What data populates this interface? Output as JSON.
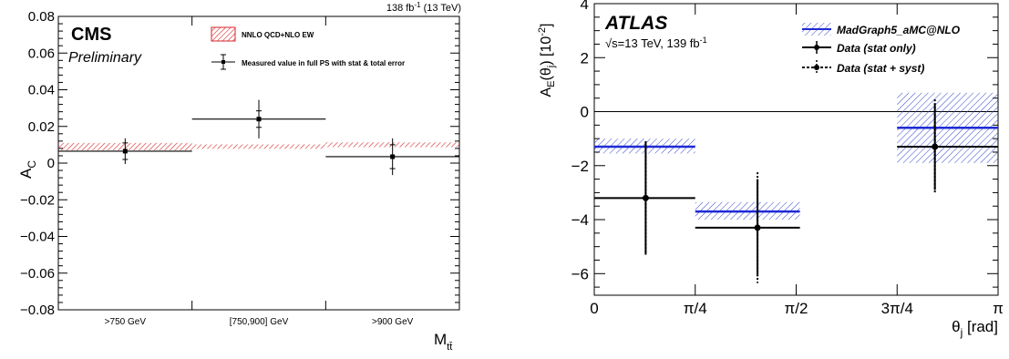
{
  "chart_data": [
    {
      "type": "scatter",
      "experiment_label": "CMS",
      "status_label": "Preliminary",
      "lumi_label": "138 fb",
      "lumi_exp": "-1",
      "lumi_energy": " (13 TeV)",
      "ylabel": "A",
      "ylabel_sub": "C",
      "xlabel": "M",
      "xlabel_sub": "tt̄",
      "ylim": [
        -0.08,
        0.08
      ],
      "yticks": [
        "0.08",
        "0.06",
        "0.04",
        "0.02",
        "0",
        "−0.02",
        "−0.04",
        "−0.06",
        "−0.08"
      ],
      "yticks_values": [
        0.08,
        0.06,
        0.04,
        0.02,
        0,
        -0.02,
        -0.04,
        -0.06,
        -0.08
      ],
      "categories": [
        ">750 GeV",
        "[750,900] GeV",
        ">900 GeV"
      ],
      "legend": {
        "prediction": "NNLO QCD+NLO EW",
        "measurement": "Measured value in full PS with stat & total error"
      },
      "series": [
        {
          "name": "NNLO QCD+NLO EW",
          "values": [
            0.009,
            0.009,
            0.01
          ],
          "band_low": [
            0.007,
            0.0078,
            0.0087
          ],
          "band_high": [
            0.011,
            0.0102,
            0.0113
          ]
        },
        {
          "name": "Measured value in full PS with stat & total error",
          "values": [
            0.0065,
            0.024,
            0.0035
          ],
          "stat_err": [
            0.0045,
            0.0045,
            0.0065
          ],
          "total_err": [
            0.007,
            0.0105,
            0.01
          ]
        }
      ],
      "colors": {
        "band": "#d6262b",
        "data": "#000000"
      }
    },
    {
      "type": "scatter",
      "experiment_label": "ATLAS",
      "energy_label": "√s=13 TeV, 139 fb",
      "energy_exp": "-1",
      "ylabel": "A",
      "ylabel_sub": "E",
      "ylabel_arg": "(θ",
      "ylabel_arg_sub": "j",
      "ylabel_tail": ") [10",
      "ylabel_tail_exp": "-2",
      "ylabel_close": "]",
      "xlabel": "θ",
      "xlabel_sub": "j",
      "xlabel_unit": " [rad]",
      "ylim": [
        -6.8,
        4
      ],
      "yticks": [
        "4",
        "2",
        "0",
        "−2",
        "−4",
        "−6"
      ],
      "yticks_values": [
        4,
        2,
        0,
        -2,
        -4,
        -6
      ],
      "xlim": [
        0,
        3.1416
      ],
      "xticks": [
        "0",
        "π/4",
        "π/2",
        "3π/4",
        "π"
      ],
      "xticks_values": [
        0,
        0.7854,
        1.5708,
        2.3562,
        3.1416
      ],
      "bins": [
        [
          0,
          0.7854
        ],
        [
          0.7854,
          1.6
        ],
        [
          1.6,
          2.3562
        ],
        [
          2.3562,
          3.1416
        ]
      ],
      "legend": {
        "mc": "MadGraph5_aMC@NLO",
        "data_stat": "Data (stat only)",
        "data_syst": "Data (stat + syst)"
      },
      "series": [
        {
          "name": "MadGraph5_aMC@NLO",
          "values": [
            -1.3,
            -3.7,
            null,
            -0.6
          ],
          "band_low": [
            -1.55,
            -4.0,
            null,
            -1.9
          ],
          "band_high": [
            -1.0,
            -3.35,
            null,
            0.7
          ]
        },
        {
          "name": "Data (stat only)",
          "bin_x": [
            0.4,
            1.27,
            null,
            2.65
          ],
          "values": [
            -3.2,
            -4.3,
            null,
            -1.3
          ],
          "stat_err": [
            2.1,
            1.8,
            null,
            1.6
          ],
          "tot_err": [
            2.1,
            2.05,
            null,
            1.75
          ],
          "line_values": [
            -3.2,
            -4.3,
            null,
            -1.3
          ]
        }
      ],
      "colors": {
        "mc": "#1f2bd6",
        "band": "#3344cc",
        "data": "#000000"
      }
    }
  ]
}
